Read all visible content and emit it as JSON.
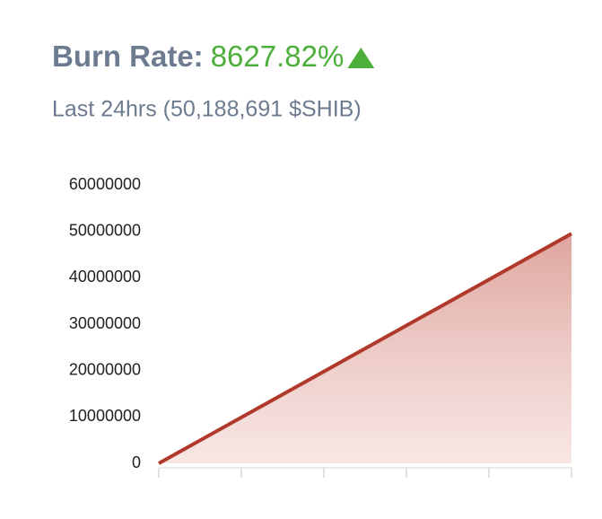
{
  "chart_data": {
    "type": "line",
    "title": "Burn Rate:",
    "title_value": "8627.82%",
    "subtitle": "Last 24hrs (50,188,691 $SHIB)",
    "categories": [
      null,
      null,
      null,
      null,
      null,
      null
    ],
    "values": [
      0,
      9900000,
      19800000,
      29700000,
      39600000,
      49500000
    ],
    "color": "#b0392b",
    "value_color": "#4caf3a",
    "ylim": [
      0,
      60000000
    ],
    "yticks": [
      0,
      10000000,
      20000000,
      30000000,
      40000000,
      50000000,
      60000000
    ],
    "grid": false
  }
}
